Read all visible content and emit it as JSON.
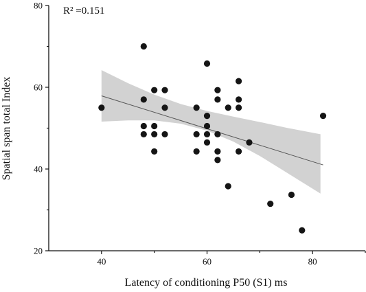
{
  "chart_data": {
    "type": "scatter",
    "xlabel": "Latency of conditioning P50 (S1) ms",
    "ylabel": "Spatial span total  Index",
    "annotation": "R² =0.151",
    "xlim": [
      30,
      90
    ],
    "ylim": [
      20,
      80
    ],
    "xticks": [
      40,
      60,
      80
    ],
    "yticks": [
      20,
      40,
      60,
      80
    ],
    "xtick_labels": [
      "40",
      "60",
      "80"
    ],
    "ytick_labels": [
      "20",
      "40",
      "60",
      "80"
    ],
    "grid": false,
    "legend": "none",
    "point_color": "#151515",
    "band_color": "#d2d2d2",
    "line_color": "#555555",
    "fit": {
      "x": [
        40,
        82
      ],
      "y": [
        57.9,
        41.0
      ]
    },
    "confidence_band": {
      "x": [
        40,
        45,
        50,
        55,
        60,
        65,
        70,
        75,
        81.5
      ],
      "upper": [
        64.2,
        61.0,
        58.2,
        55.9,
        54.2,
        52.8,
        51.5,
        50.1,
        48.5
      ],
      "lower": [
        51.6,
        51.9,
        51.9,
        51.1,
        49.4,
        46.7,
        43.2,
        39.2,
        34.0
      ]
    },
    "points": [
      {
        "x": 40,
        "y": 55
      },
      {
        "x": 48,
        "y": 70
      },
      {
        "x": 48,
        "y": 57
      },
      {
        "x": 48,
        "y": 50.5
      },
      {
        "x": 48,
        "y": 48.5
      },
      {
        "x": 50,
        "y": 59.3
      },
      {
        "x": 50,
        "y": 50.5
      },
      {
        "x": 50,
        "y": 48.5
      },
      {
        "x": 50,
        "y": 44.3
      },
      {
        "x": 52,
        "y": 59.3
      },
      {
        "x": 52,
        "y": 55
      },
      {
        "x": 52,
        "y": 48.5
      },
      {
        "x": 58,
        "y": 55
      },
      {
        "x": 58,
        "y": 48.5
      },
      {
        "x": 58,
        "y": 44.3
      },
      {
        "x": 60,
        "y": 65.8
      },
      {
        "x": 60,
        "y": 53
      },
      {
        "x": 60,
        "y": 50.5
      },
      {
        "x": 60,
        "y": 48.5
      },
      {
        "x": 60,
        "y": 46.5
      },
      {
        "x": 62,
        "y": 59.3
      },
      {
        "x": 62,
        "y": 57
      },
      {
        "x": 62,
        "y": 48.5
      },
      {
        "x": 62,
        "y": 44.3
      },
      {
        "x": 62,
        "y": 42.2
      },
      {
        "x": 64,
        "y": 55
      },
      {
        "x": 64,
        "y": 35.8
      },
      {
        "x": 66,
        "y": 61.5
      },
      {
        "x": 66,
        "y": 57
      },
      {
        "x": 66,
        "y": 55
      },
      {
        "x": 66,
        "y": 44.3
      },
      {
        "x": 68,
        "y": 46.5
      },
      {
        "x": 72,
        "y": 31.5
      },
      {
        "x": 76,
        "y": 33.7
      },
      {
        "x": 78,
        "y": 25
      },
      {
        "x": 82,
        "y": 53
      }
    ]
  }
}
